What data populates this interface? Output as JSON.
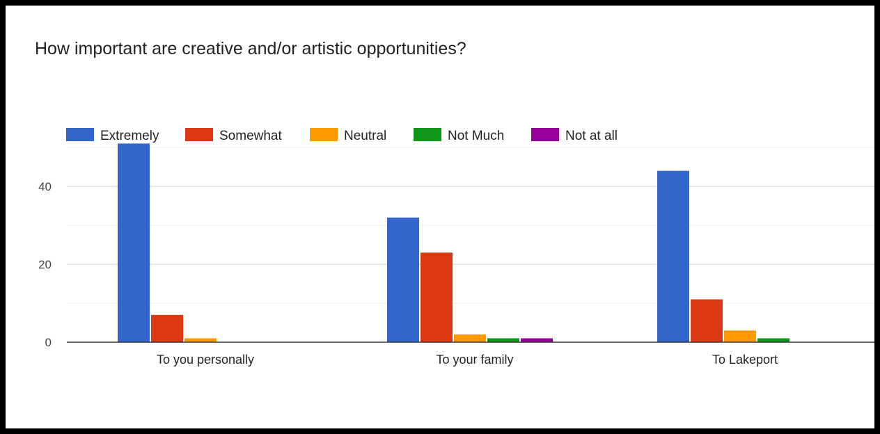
{
  "chart_data": {
    "type": "bar",
    "title": "How important are creative and/or artistic opportunities?",
    "categories": [
      "To you personally",
      "To your family",
      "To Lakeport"
    ],
    "series": [
      {
        "name": "Extremely",
        "values": [
          51,
          32,
          44
        ],
        "color": "#3366cc"
      },
      {
        "name": "Somewhat",
        "values": [
          7,
          23,
          11
        ],
        "color": "#dc3912"
      },
      {
        "name": "Neutral",
        "values": [
          1,
          2,
          3
        ],
        "color": "#ff9900"
      },
      {
        "name": "Not Much",
        "values": [
          0,
          1,
          1
        ],
        "color": "#109618"
      },
      {
        "name": "Not at all",
        "values": [
          0,
          1,
          0
        ],
        "color": "#990099"
      }
    ],
    "yticks": [
      0,
      20,
      40
    ],
    "ylim": [
      0,
      50
    ],
    "grid": true,
    "legend_position": "top-left"
  }
}
